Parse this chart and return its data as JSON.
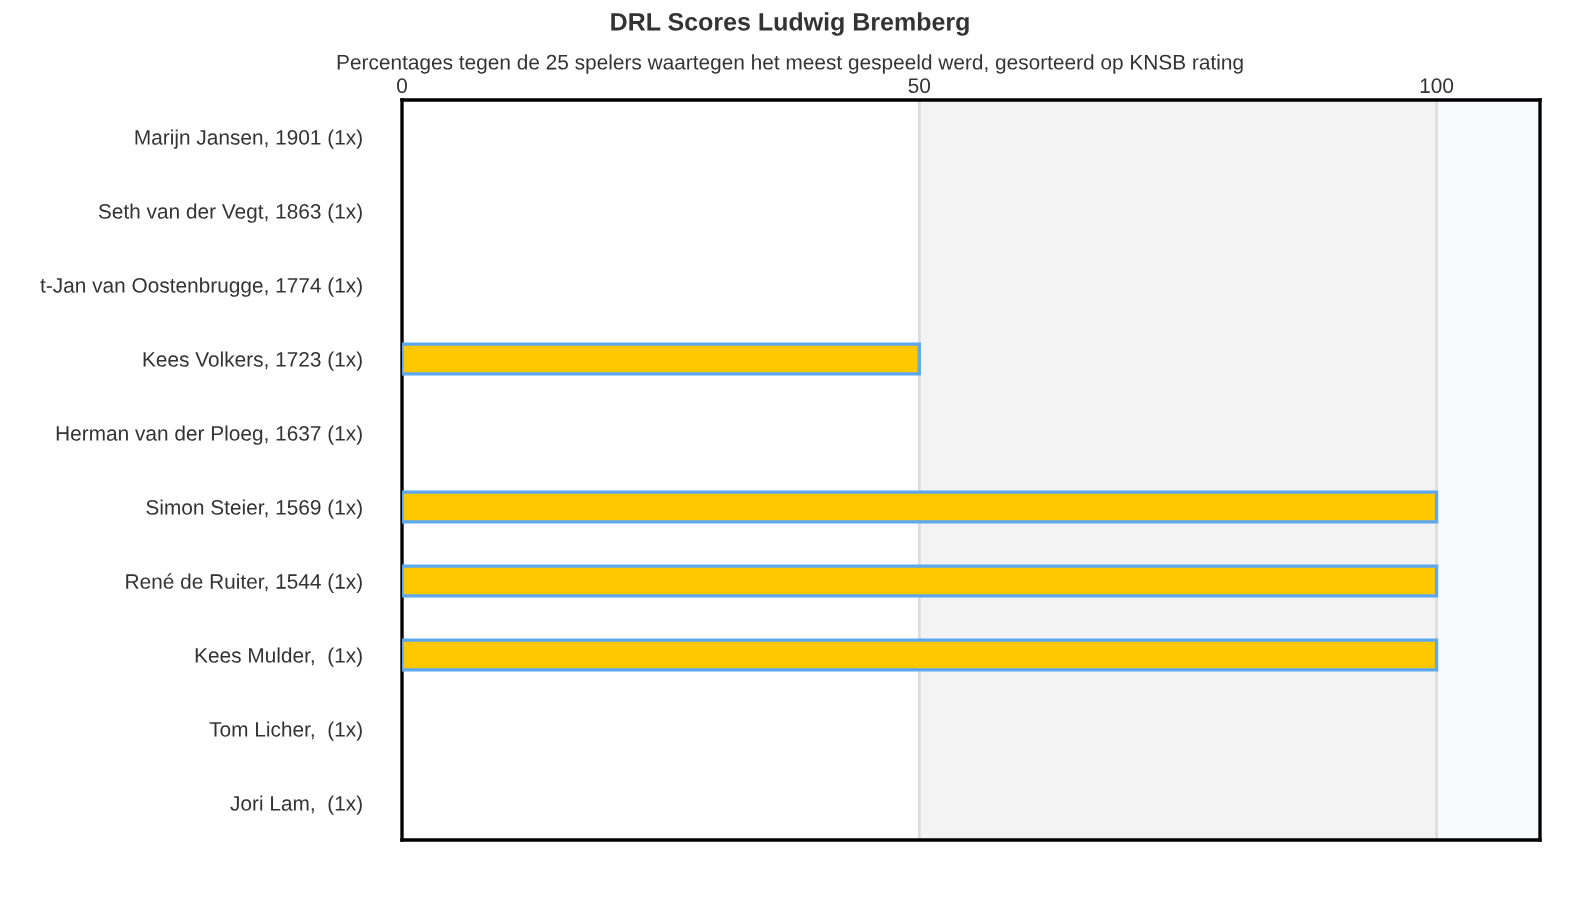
{
  "chart_data": {
    "type": "bar",
    "orientation": "horizontal",
    "title": "DRL Scores Ludwig Bremberg",
    "subtitle": "Percentages tegen de 25 spelers waartegen het meest gespeeld werd, gesorteerd op KNSB rating",
    "categories": [
      "Marijn Jansen, 1901 (1x)",
      "Seth van der Vegt, 1863 (1x)",
      "t-Jan van Oostenbrugge, 1774 (1x)",
      "Kees Volkers, 1723 (1x)",
      "Herman van der Ploeg, 1637 (1x)",
      "Simon Steier, 1569 (1x)",
      "René de Ruiter, 1544 (1x)",
      "Kees Mulder,  (1x)",
      "Tom Licher,  (1x)",
      "Jori Lam,  (1x)"
    ],
    "values": [
      0,
      0,
      0,
      50,
      0,
      100,
      100,
      100,
      0,
      0
    ],
    "color": "#ffc800",
    "xlim": [
      0,
      110
    ],
    "xticks": [
      0,
      50,
      100
    ],
    "grid": "x",
    "bands": [
      {
        "axis": "x",
        "from": 50,
        "to": 100,
        "color": "#f3f3f3"
      },
      {
        "axis": "x",
        "from": 100,
        "to": 110,
        "color": "#f8fbfe"
      }
    ]
  }
}
